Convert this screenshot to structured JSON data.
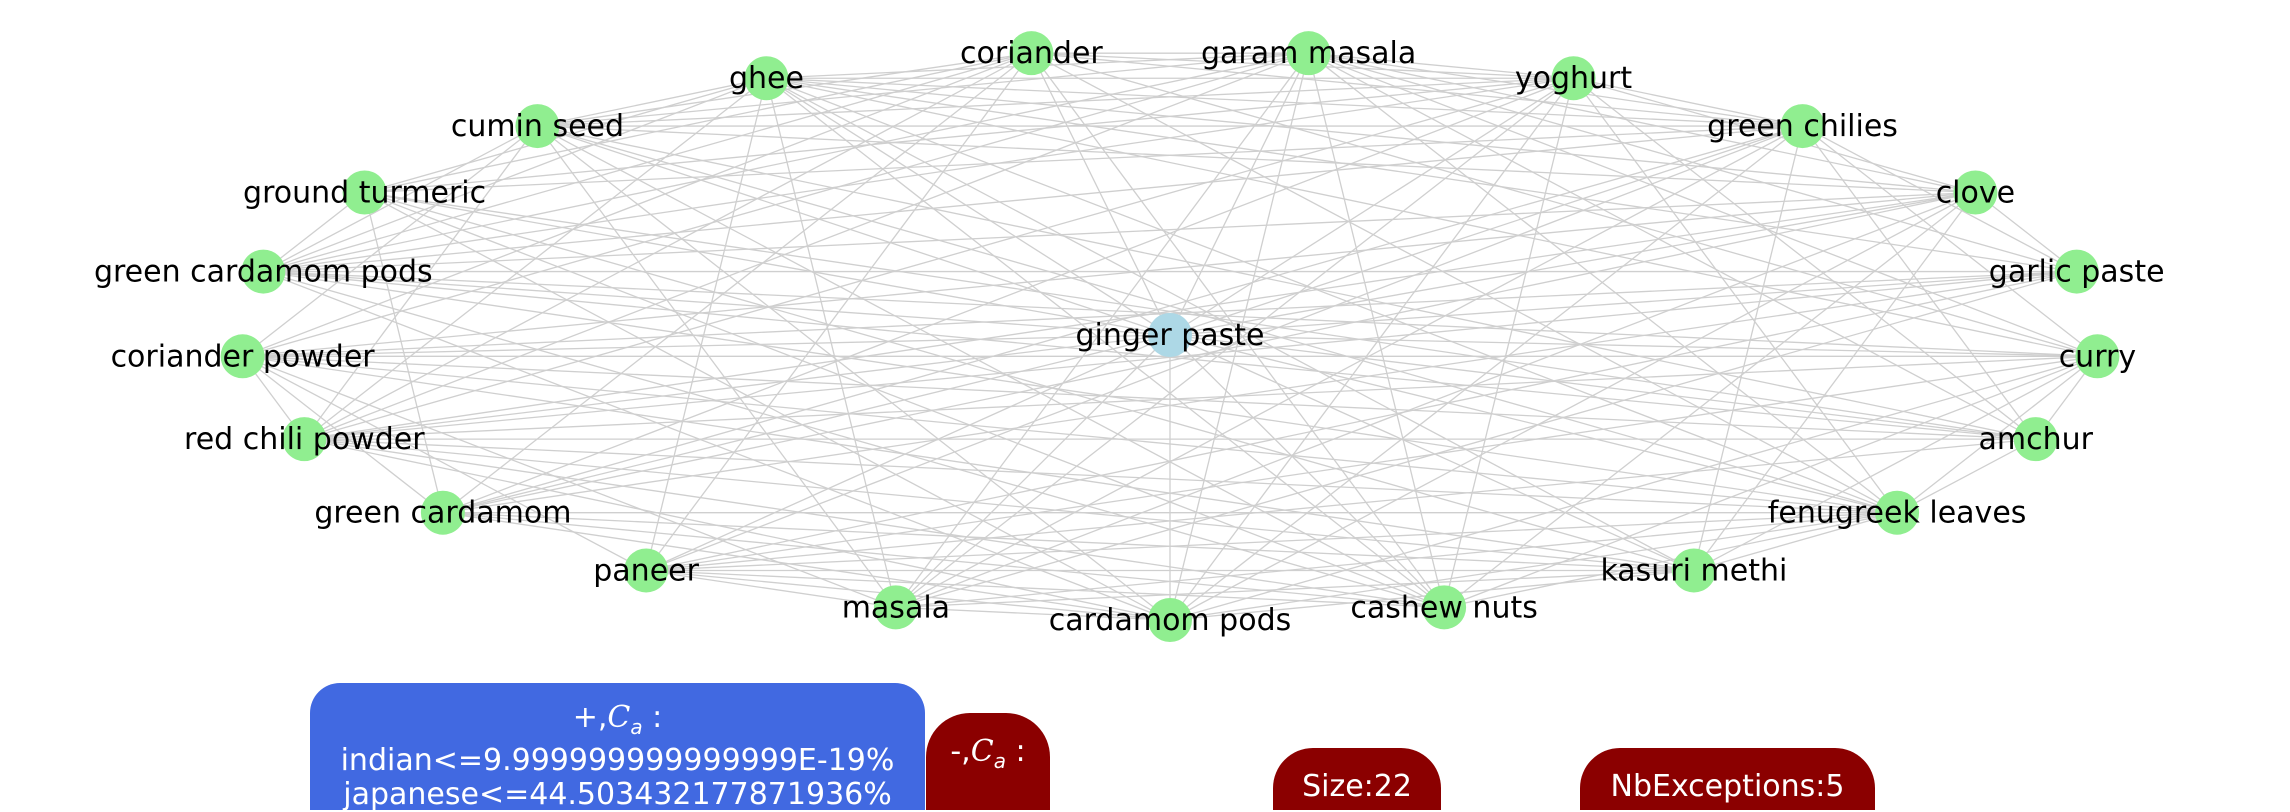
{
  "graph": {
    "center": {
      "id": "ginger-paste",
      "label": "ginger paste",
      "color": "#add8e6"
    },
    "nodes": [
      {
        "id": "garam-masala",
        "label": "garam masala"
      },
      {
        "id": "yoghurt",
        "label": "yoghurt"
      },
      {
        "id": "green-chilies",
        "label": "green chilies"
      },
      {
        "id": "clove",
        "label": "clove"
      },
      {
        "id": "garlic-paste",
        "label": "garlic paste"
      },
      {
        "id": "curry",
        "label": "curry"
      },
      {
        "id": "amchur",
        "label": "amchur"
      },
      {
        "id": "fenugreek-leaves",
        "label": "fenugreek leaves"
      },
      {
        "id": "kasuri-methi",
        "label": "kasuri methi"
      },
      {
        "id": "cashew-nuts",
        "label": "cashew nuts"
      },
      {
        "id": "cardamom-pods",
        "label": "cardamom pods"
      },
      {
        "id": "masala",
        "label": "masala"
      },
      {
        "id": "paneer",
        "label": "paneer"
      },
      {
        "id": "green-cardamom",
        "label": "green cardamom"
      },
      {
        "id": "red-chili-powder",
        "label": "red chili powder"
      },
      {
        "id": "coriander-powder",
        "label": "coriander powder"
      },
      {
        "id": "green-cardamom-pods",
        "label": "green cardamom pods"
      },
      {
        "id": "ground-turmeric",
        "label": "ground turmeric"
      },
      {
        "id": "cumin-seed",
        "label": "cumin seed"
      },
      {
        "id": "ghee",
        "label": "ghee"
      },
      {
        "id": "coriander",
        "label": "coriander"
      }
    ],
    "node_color": "#90ee90",
    "edge_color": "#cfcfcf"
  },
  "badges": {
    "plus": {
      "prefix": "+,",
      "var": "C",
      "sub": "a",
      "suffix": " :",
      "lines": [
        "indian<=9.999999999999999E-19%",
        "japanese<=44.503432177871936%"
      ],
      "color": "#4169e1"
    },
    "minus": {
      "prefix": "-,",
      "var": "C",
      "sub": "a",
      "suffix": " :",
      "color": "#8b0000"
    },
    "size": {
      "label": "Size:22",
      "color": "#8b0000"
    },
    "exceptions": {
      "label": "NbExceptions:5",
      "color": "#8b0000"
    }
  }
}
